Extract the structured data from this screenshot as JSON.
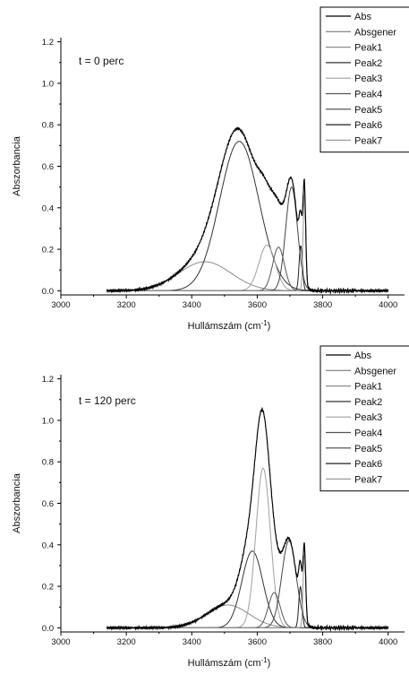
{
  "chart_data": [
    {
      "type": "line",
      "annotation": "t = 0 perc",
      "xlabel": "Hullámszám (cm",
      "xlabel_sup": "-1",
      "xlabel_end": ")",
      "ylabel": "Abszorbancia",
      "xlim": [
        3000,
        4050
      ],
      "ylim": [
        -0.02,
        1.22
      ],
      "xticks": [
        3000,
        3200,
        3400,
        3600,
        3800,
        4000
      ],
      "yticks": [
        "0.0",
        "0.2",
        "0.4",
        "0.6",
        "0.8",
        "1.0",
        "1.2"
      ],
      "legend": [
        "Abs",
        "Absgener",
        "Peak1",
        "Peak2",
        "Peak3",
        "Peak4",
        "Peak5",
        "Peak6",
        "Peak7"
      ],
      "legend_position": "top-right",
      "peaks": [
        {
          "name": "Peak1",
          "center": 3440,
          "height": 0.14,
          "width": 80
        },
        {
          "name": "Peak2",
          "center": 3545,
          "height": 0.72,
          "width": 60
        },
        {
          "name": "Peak3",
          "center": 3630,
          "height": 0.22,
          "width": 25
        },
        {
          "name": "Peak4",
          "center": 3665,
          "height": 0.21,
          "width": 18
        },
        {
          "name": "Peak5",
          "center": 3705,
          "height": 0.5,
          "width": 18
        },
        {
          "name": "Peak6",
          "center": 3733,
          "height": 0.22,
          "width": 5
        },
        {
          "name": "Peak7",
          "center": 3744,
          "height": 0.46,
          "width": 4
        }
      ],
      "range": [
        3140,
        4000
      ]
    },
    {
      "type": "line",
      "annotation": "t = 120 perc",
      "xlabel": "Hullámszám (cm",
      "xlabel_sup": "-1",
      "xlabel_end": ")",
      "ylabel": "Abszorbancia",
      "xlim": [
        3000,
        4050
      ],
      "ylim": [
        -0.02,
        1.22
      ],
      "xticks": [
        3000,
        3200,
        3400,
        3600,
        3800,
        4000
      ],
      "yticks": [
        "0.0",
        "0.2",
        "0.4",
        "0.6",
        "0.8",
        "1.0",
        "1.2"
      ],
      "legend": [
        "Abs",
        "Absgener",
        "Peak1",
        "Peak2",
        "Peak3",
        "Peak4",
        "Peak5",
        "Peak6",
        "Peak7"
      ],
      "legend_position": "top-right",
      "peaks": [
        {
          "name": "Peak1",
          "center": 3510,
          "height": 0.11,
          "width": 65
        },
        {
          "name": "Peak2",
          "center": 3585,
          "height": 0.37,
          "width": 32
        },
        {
          "name": "Peak3",
          "center": 3618,
          "height": 0.77,
          "width": 22
        },
        {
          "name": "Peak4",
          "center": 3652,
          "height": 0.17,
          "width": 18
        },
        {
          "name": "Peak5",
          "center": 3697,
          "height": 0.42,
          "width": 22
        },
        {
          "name": "Peak6",
          "center": 3732,
          "height": 0.2,
          "width": 5
        },
        {
          "name": "Peak7",
          "center": 3744,
          "height": 0.35,
          "width": 4
        }
      ],
      "range": [
        3140,
        4000
      ]
    }
  ],
  "colors": {
    "abs": "#000000",
    "absgener": "#7a7a7a",
    "peaks": [
      "#8c8c8c",
      "#333333",
      "#a0a0a0",
      "#555555",
      "#444444",
      "#222222",
      "#9a9a9a"
    ]
  }
}
